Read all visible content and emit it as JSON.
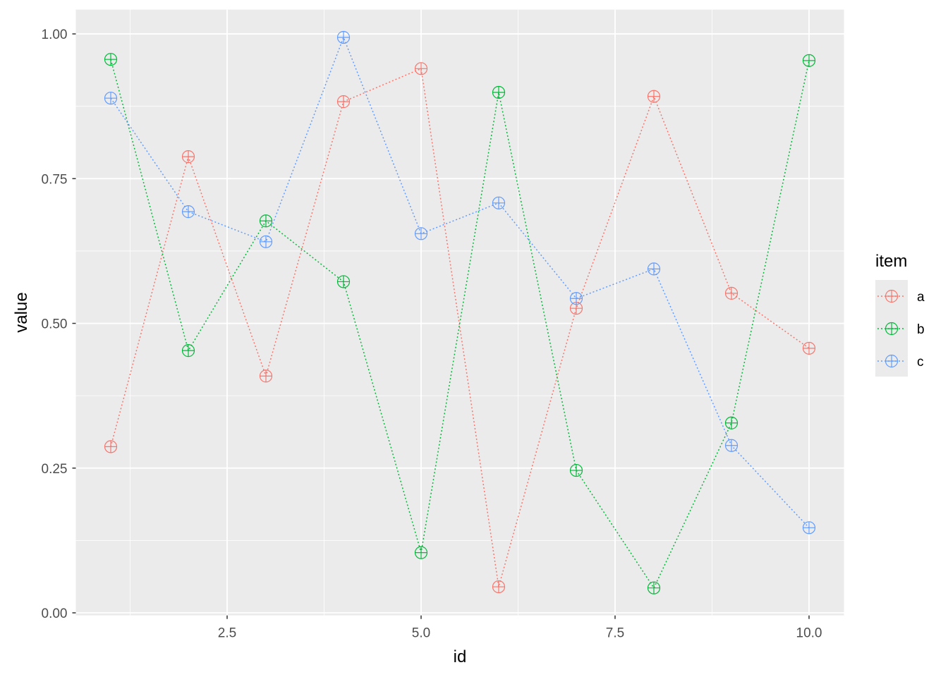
{
  "chart_data": {
    "type": "line",
    "title": "",
    "xlabel": "id",
    "ylabel": "value",
    "x": [
      1,
      2,
      3,
      4,
      5,
      6,
      7,
      8,
      9,
      10
    ],
    "xlim": [
      0.55,
      10.45
    ],
    "ylim": [
      -0.0045,
      1.042
    ],
    "xticks": [
      2.5,
      5.0,
      7.5,
      10.0
    ],
    "xtick_labels": [
      "2.5",
      "5.0",
      "7.5",
      "10.0"
    ],
    "yticks": [
      0,
      0.25,
      0.5,
      0.75,
      1.0
    ],
    "ytick_labels": [
      "0.00",
      "0.25",
      "0.50",
      "0.75",
      "1.00"
    ],
    "grid": true,
    "legend": {
      "title": "item",
      "placement": "right"
    },
    "series": [
      {
        "name": "a",
        "color": "#F8766D",
        "values": [
          0.287,
          0.788,
          0.409,
          0.883,
          0.94,
          0.045,
          0.526,
          0.892,
          0.552,
          0.457
        ]
      },
      {
        "name": "b",
        "color": "#00BA38",
        "values": [
          0.956,
          0.453,
          0.677,
          0.572,
          0.104,
          0.899,
          0.246,
          0.043,
          0.328,
          0.954
        ]
      },
      {
        "name": "c",
        "color": "#619CFF",
        "values": [
          0.889,
          0.693,
          0.641,
          0.994,
          0.655,
          0.708,
          0.543,
          0.594,
          0.289,
          0.147
        ]
      }
    ]
  }
}
